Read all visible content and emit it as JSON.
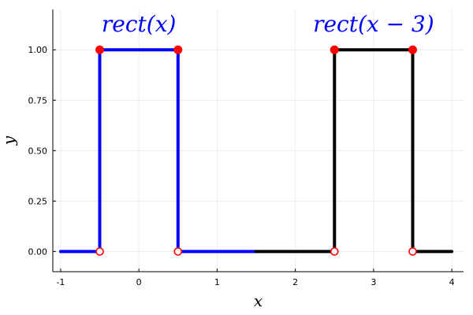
{
  "chart_data": {
    "type": "line",
    "title": "",
    "xlabel": "x",
    "ylabel": "y",
    "xlim": [
      -1.1,
      4.15
    ],
    "ylim": [
      -0.1,
      1.2
    ],
    "x_ticks": [
      -1,
      0,
      1,
      2,
      3,
      4
    ],
    "x_tick_labels": [
      "-1",
      "0",
      "1",
      "2",
      "3",
      "4"
    ],
    "y_ticks": [
      0.0,
      0.25,
      0.5,
      0.75,
      1.0
    ],
    "y_tick_labels": [
      "0.00",
      "0.25",
      "0.50",
      "0.75",
      "1.00"
    ],
    "grid": true,
    "legend": "none",
    "series": [
      {
        "color": "#0000ff",
        "x": [
          -1.0,
          -0.5,
          -0.5,
          0.5,
          0.5,
          1.5
        ],
        "y": [
          0,
          0,
          1,
          1,
          0,
          0
        ],
        "filled_points": [
          [
            -0.5,
            1
          ],
          [
            0.5,
            1
          ]
        ],
        "open_points": [
          [
            -0.5,
            0
          ],
          [
            0.5,
            0
          ]
        ]
      },
      {
        "color": "#000000",
        "x": [
          1.5,
          2.5,
          2.5,
          3.5,
          3.5,
          4.0
        ],
        "y": [
          0,
          0,
          1,
          1,
          0,
          0
        ],
        "filled_points": [
          [
            2.5,
            1
          ],
          [
            3.5,
            1
          ]
        ],
        "open_points": [
          [
            2.5,
            0
          ],
          [
            3.5,
            0
          ]
        ]
      }
    ],
    "point_color": "#ff0000",
    "annotations": [
      {
        "text": "rect(x)",
        "x": 0.0,
        "y": 1.13,
        "color": "#0000ff"
      },
      {
        "text": "rect(x − 3)",
        "x": 3.0,
        "y": 1.13,
        "color": "#0000ff"
      }
    ]
  }
}
